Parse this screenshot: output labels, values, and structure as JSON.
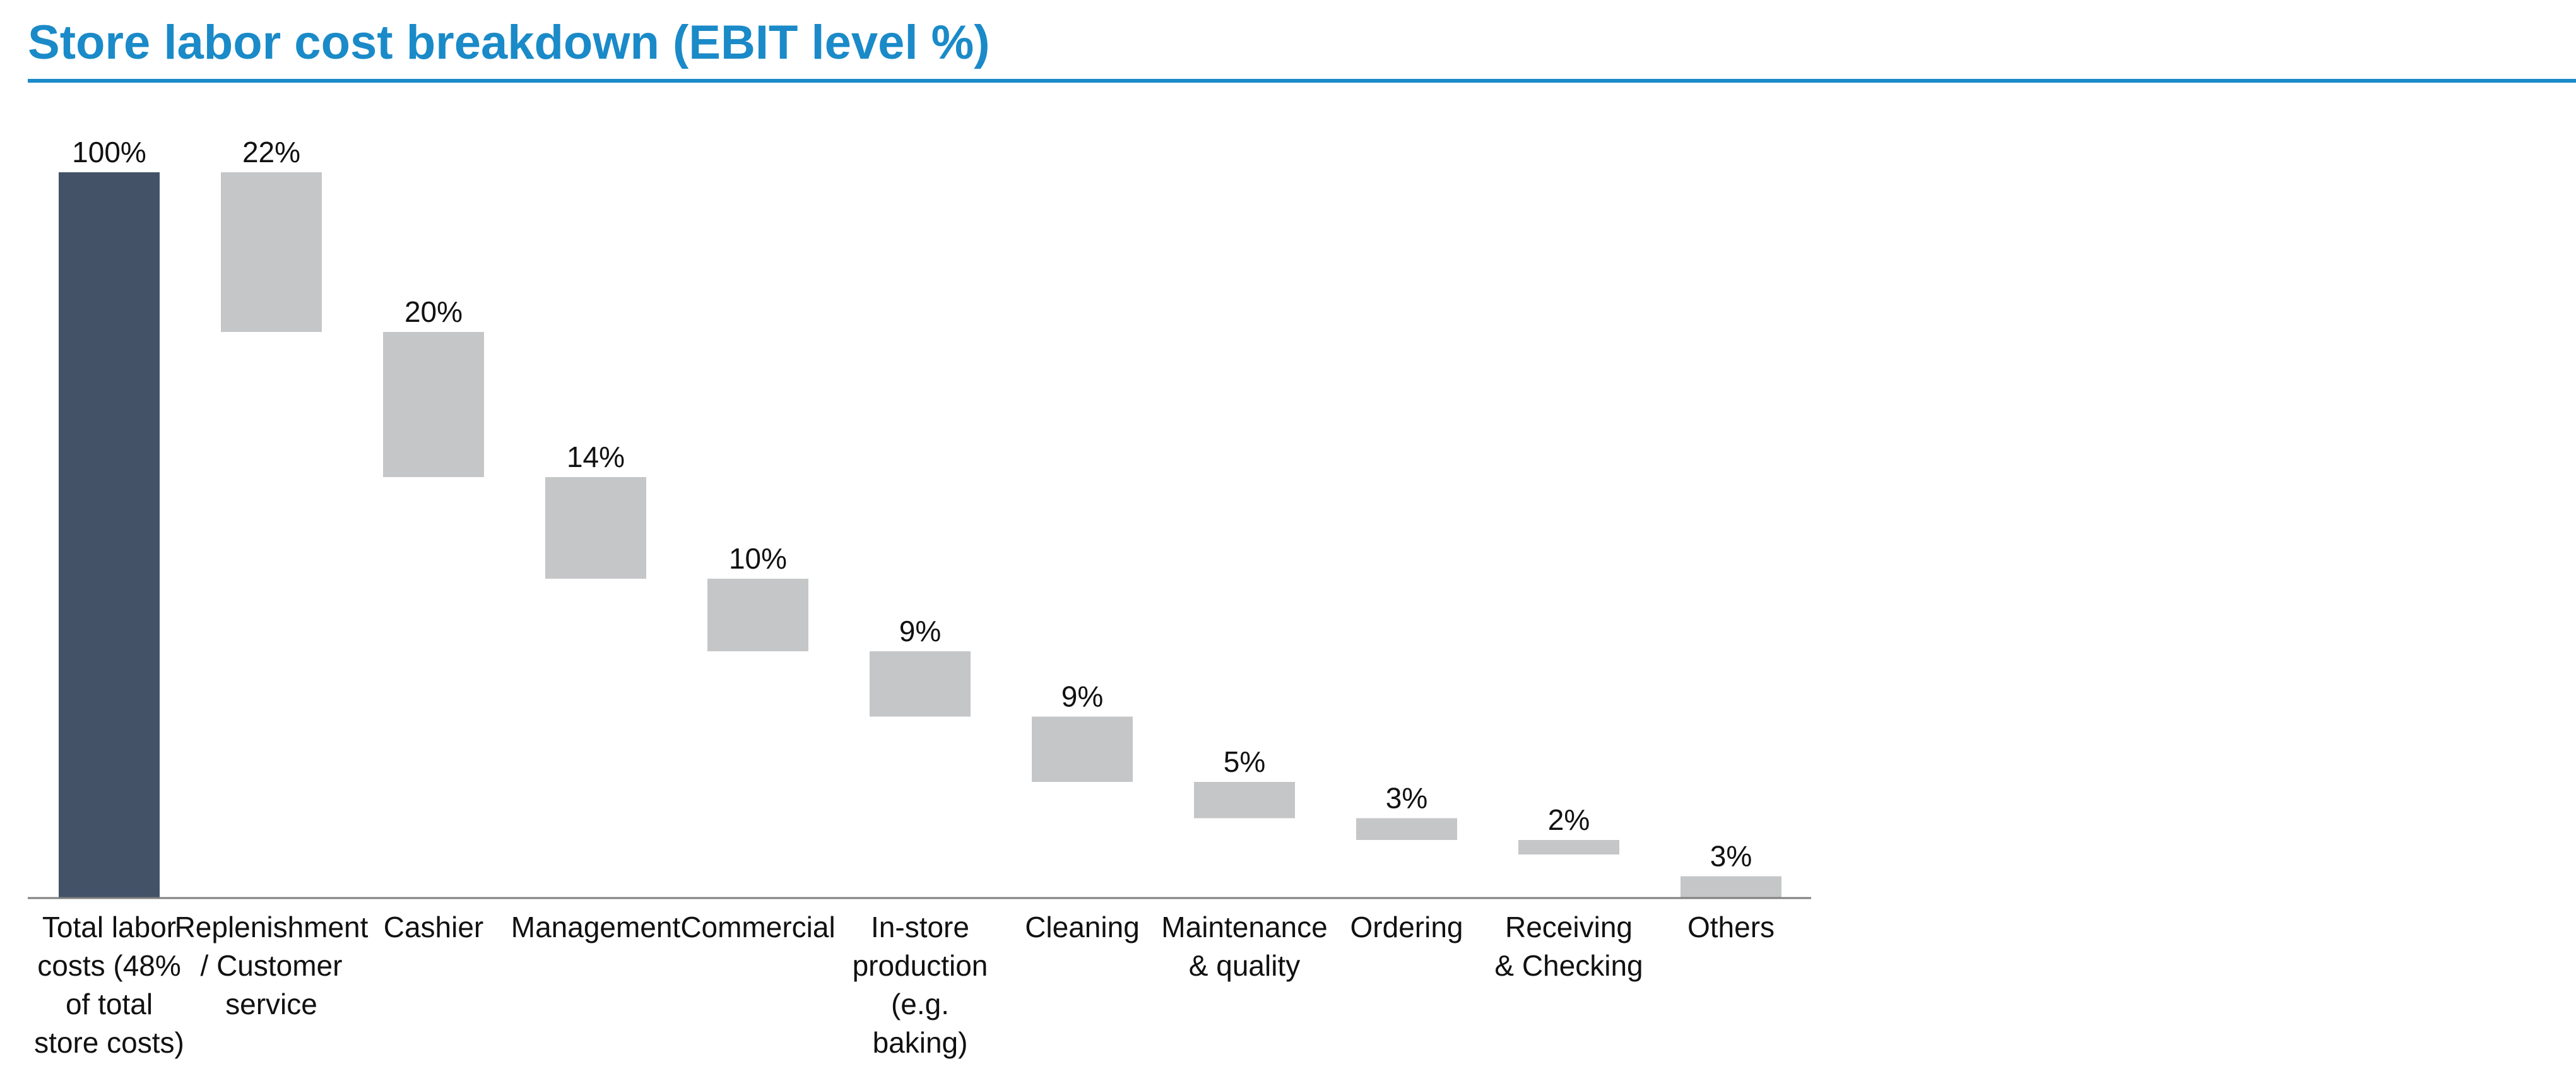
{
  "title": "Store labor cost breakdown (EBIT level %)",
  "colors": {
    "title": "#1a8ac8",
    "rule": "#1a8ac8",
    "total_bar": "#435267",
    "step_bar": "#c5c6c8",
    "axis": "#7f7f7f",
    "text": "#111111"
  },
  "chart_data": {
    "type": "waterfall",
    "title": "Store labor cost breakdown (EBIT level %)",
    "unit": "%",
    "ylim": [
      0,
      100
    ],
    "grid": false,
    "legend": "none",
    "categories": [
      [
        "Total labor",
        "costs (48%",
        "of total",
        "store costs)"
      ],
      [
        "Replenishment",
        "/ Customer",
        "service"
      ],
      [
        "Cashier"
      ],
      [
        "Management"
      ],
      [
        "Commercial"
      ],
      [
        "In-store",
        "production",
        "(e.g.",
        "baking)"
      ],
      [
        "Cleaning"
      ],
      [
        "Maintenance",
        "& quality"
      ],
      [
        "Ordering"
      ],
      [
        "Receiving",
        "& Checking"
      ],
      [
        "Others"
      ]
    ],
    "values": [
      100,
      22,
      20,
      14,
      10,
      9,
      9,
      5,
      3,
      2,
      3
    ],
    "labels": [
      "100%",
      "22%",
      "20%",
      "14%",
      "10%",
      "9%",
      "9%",
      "5%",
      "3%",
      "2%",
      "3%"
    ],
    "total_index": 0
  }
}
